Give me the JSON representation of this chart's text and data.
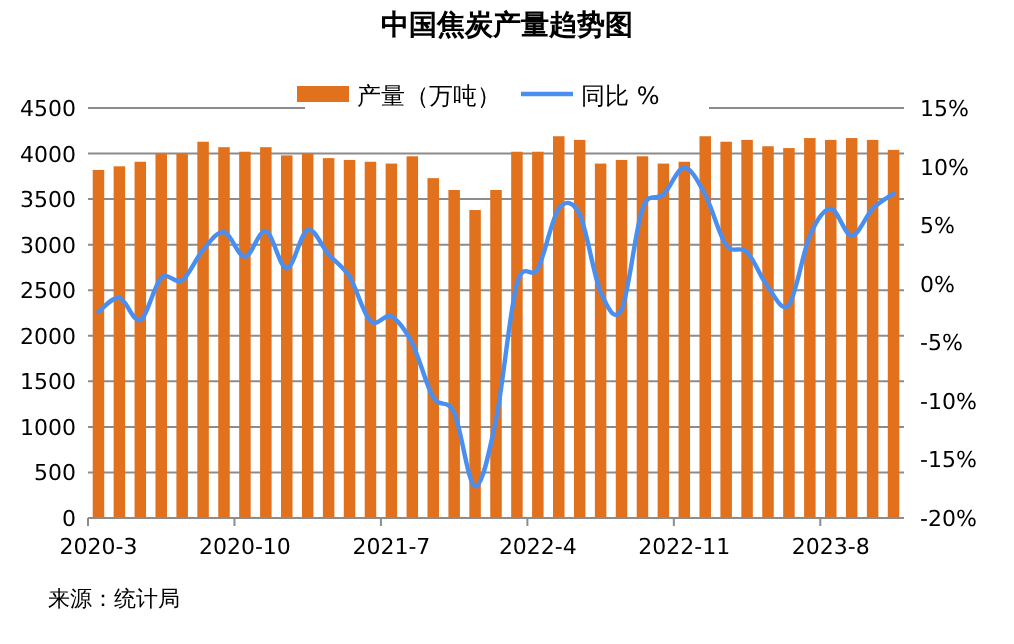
{
  "chart_data": {
    "type": "bar",
    "title": "中国焦炭产量趋势图",
    "categories": [
      "2020-3",
      null,
      null,
      null,
      null,
      null,
      null,
      "2020-10",
      null,
      null,
      null,
      null,
      null,
      null,
      "2021-7",
      null,
      null,
      null,
      null,
      null,
      null,
      "2022-4",
      null,
      null,
      null,
      null,
      null,
      null,
      "2022-11",
      null,
      null,
      null,
      null,
      null,
      null,
      "2023-8",
      null,
      null,
      null
    ],
    "series": [
      {
        "name": "产量（万吨）",
        "color": "#e2711d",
        "values": [
          3820,
          3860,
          3910,
          4000,
          4000,
          4130,
          4070,
          4020,
          4070,
          3980,
          4000,
          3950,
          3930,
          3910,
          3890,
          3970,
          3730,
          3600,
          3380,
          3600,
          4020,
          4020,
          4190,
          4150,
          3890,
          3930,
          3970,
          3890,
          3910,
          4190,
          4130,
          4150,
          4080,
          4060,
          4170,
          4150,
          4170,
          4150,
          4040
        ]
      },
      {
        "name": "同比 %",
        "type": "line",
        "axis": "y2",
        "color": "#4a8ff0",
        "values": [
          -2.4,
          -1.2,
          -3.1,
          0.5,
          0.3,
          2.9,
          4.4,
          2.3,
          4.5,
          1.3,
          4.6,
          2.5,
          0.6,
          -3.2,
          -2.8,
          -5.1,
          -9.7,
          -11.0,
          -17.3,
          -11.6,
          0,
          1.3,
          6.4,
          5.9,
          -0.7,
          -2.2,
          6.4,
          7.6,
          9.9,
          7.6,
          3.3,
          2.7,
          -0.3,
          -1.8,
          4.1,
          6.4,
          4.1,
          6.4,
          7.7
        ]
      }
    ],
    "ylim": [
      0,
      4500
    ],
    "yticks": [
      0,
      500,
      1000,
      1500,
      2000,
      2500,
      3000,
      3500,
      4000,
      4500
    ],
    "y2lim": [
      -20,
      15
    ],
    "y2ticks": [
      {
        "value": -20,
        "label": "-20%"
      },
      {
        "value": -15,
        "label": "-15%"
      },
      {
        "value": -10,
        "label": "-10%"
      },
      {
        "value": -5,
        "label": "-5%"
      },
      {
        "value": 0,
        "label": "0%"
      },
      {
        "value": 5,
        "label": "5%"
      },
      {
        "value": 10,
        "label": "10%"
      },
      {
        "value": 15,
        "label": "15%"
      }
    ],
    "grid": "y",
    "legend": "top",
    "annotations": [
      "来源：统计局"
    ]
  }
}
